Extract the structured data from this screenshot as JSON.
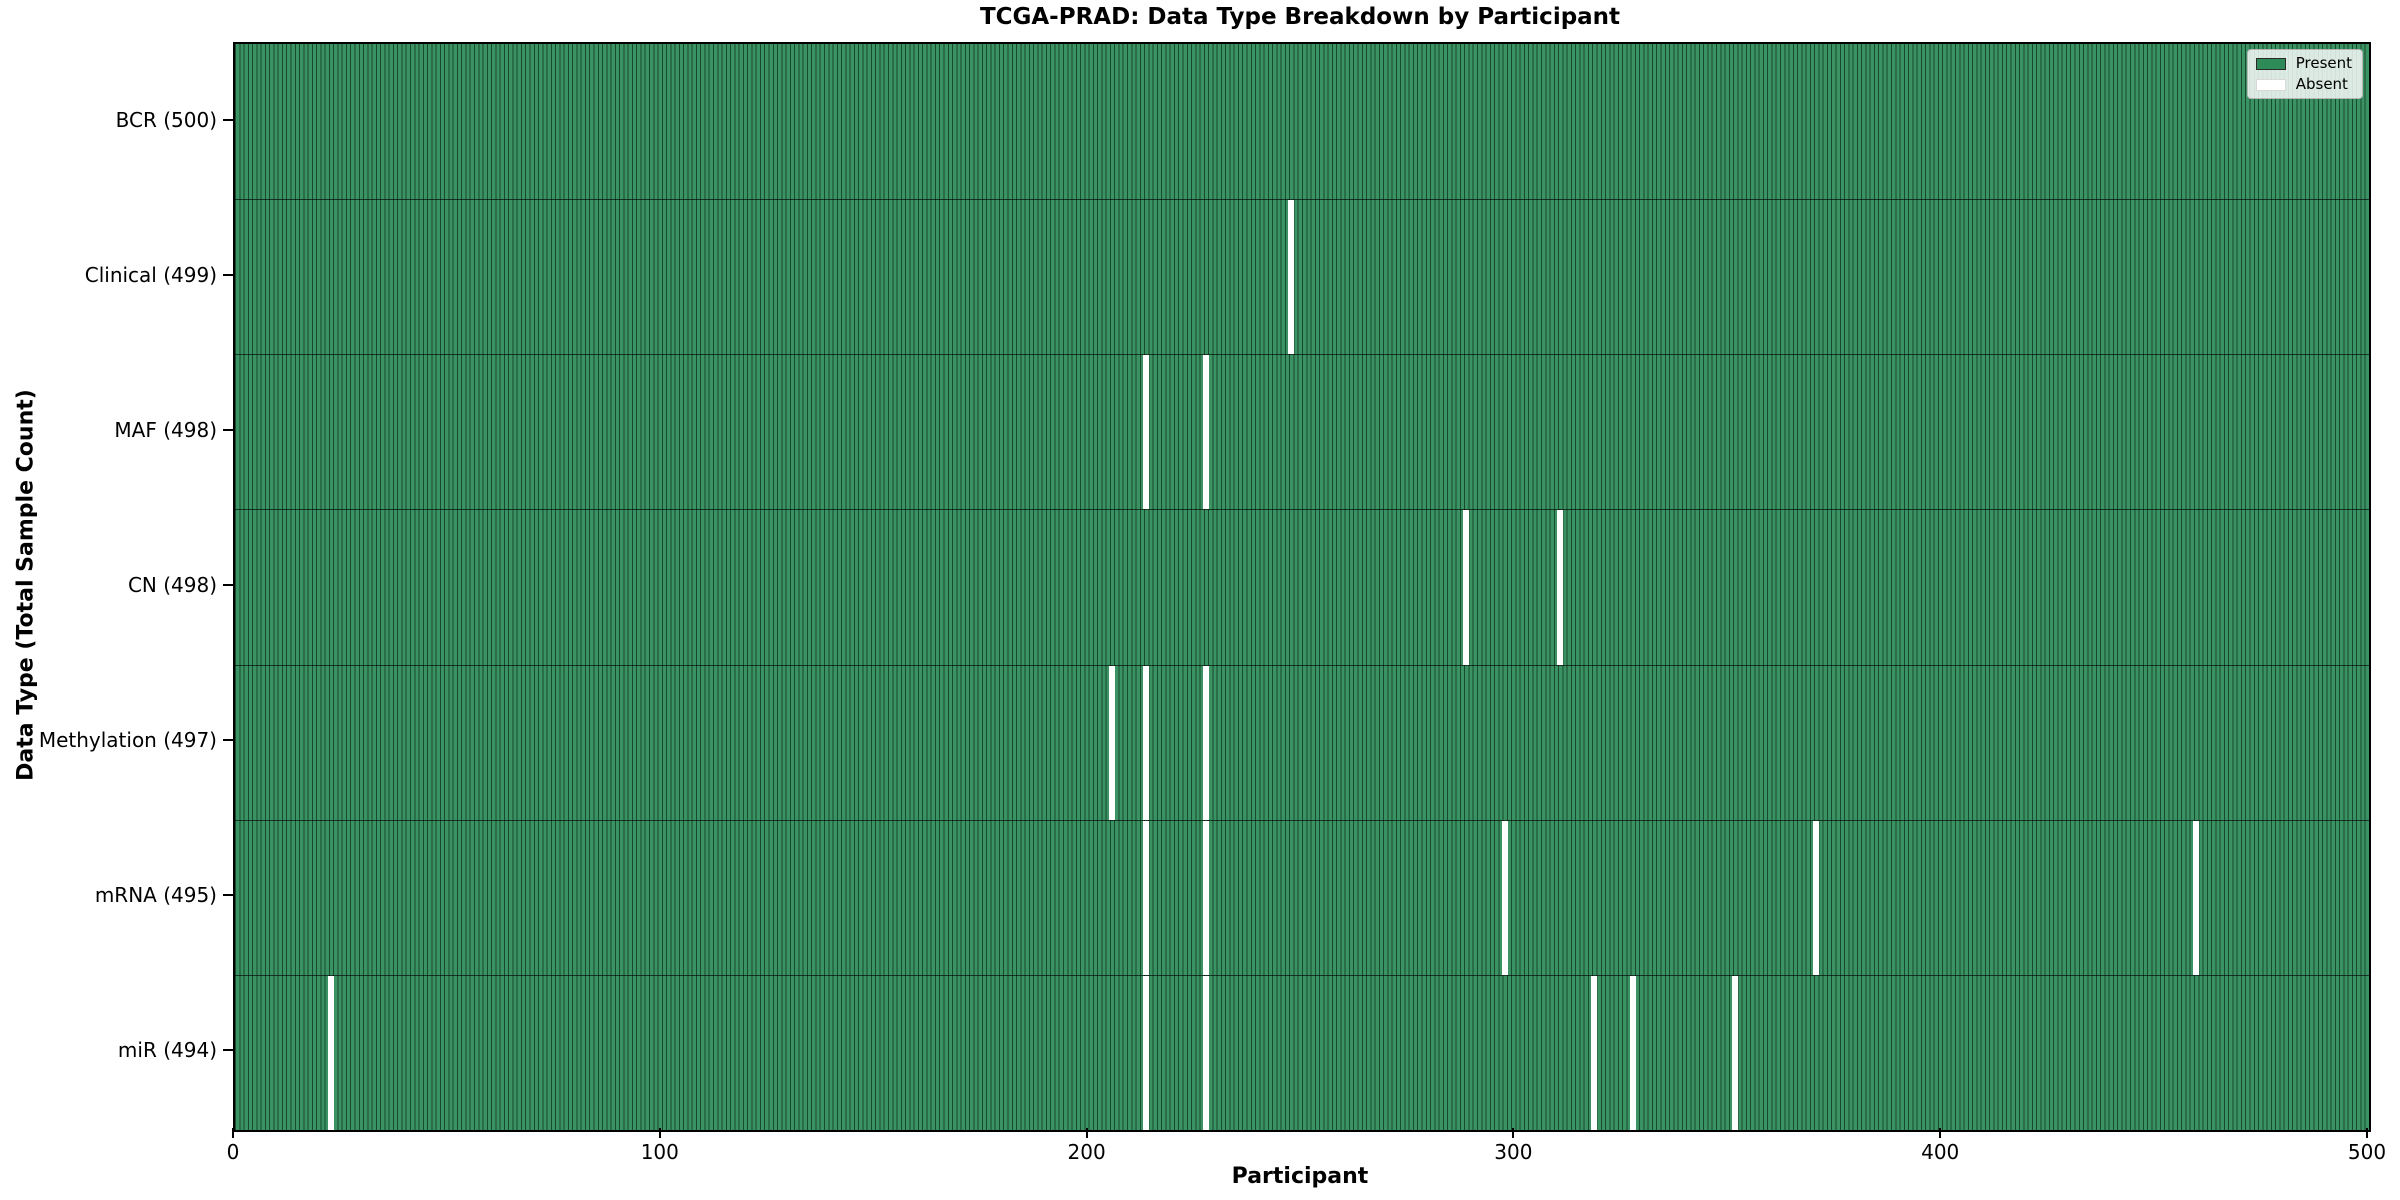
{
  "title": "TCGA-PRAD: Data Type Breakdown by Participant",
  "xlabel": "Participant",
  "ylabel": "Data Type (Total Sample Count)",
  "legend": {
    "present_label": "Present",
    "absent_label": "Absent"
  },
  "colors": {
    "present_fill": "#3b9263",
    "present_legend": "#2e8b57",
    "cell_edge": "#174b2f",
    "absent": "#ffffff",
    "row_divider": "rgba(0,0,0,0.62)"
  },
  "chart_data": {
    "type": "heatmap",
    "title": "TCGA-PRAD: Data Type Breakdown by Participant",
    "xlabel": "Participant",
    "ylabel": "Data Type (Total Sample Count)",
    "x_range": [
      0,
      500
    ],
    "x_ticks": [
      0,
      100,
      200,
      300,
      400,
      500
    ],
    "n_participants": 500,
    "legend_entries": [
      "Present",
      "Absent"
    ],
    "legend_position": "upper right",
    "rows": [
      {
        "label": "BCR (500)",
        "data_type": "BCR",
        "total": 500,
        "absent_participants": []
      },
      {
        "label": "Clinical (499)",
        "data_type": "Clinical",
        "total": 499,
        "absent_participants": [
          247
        ]
      },
      {
        "label": "MAF (498)",
        "data_type": "MAF",
        "total": 498,
        "absent_participants": [
          213,
          227
        ]
      },
      {
        "label": "CN (498)",
        "data_type": "CN",
        "total": 498,
        "absent_participants": [
          288,
          310
        ]
      },
      {
        "label": "Methylation (497)",
        "data_type": "Methylation",
        "total": 497,
        "absent_participants": [
          205,
          213,
          227
        ]
      },
      {
        "label": "mRNA (495)",
        "data_type": "mRNA",
        "total": 495,
        "absent_participants": [
          213,
          227,
          297,
          370,
          459
        ]
      },
      {
        "label": "miR (494)",
        "data_type": "miR",
        "total": 494,
        "absent_participants": [
          22,
          213,
          227,
          318,
          327,
          351
        ]
      }
    ]
  }
}
